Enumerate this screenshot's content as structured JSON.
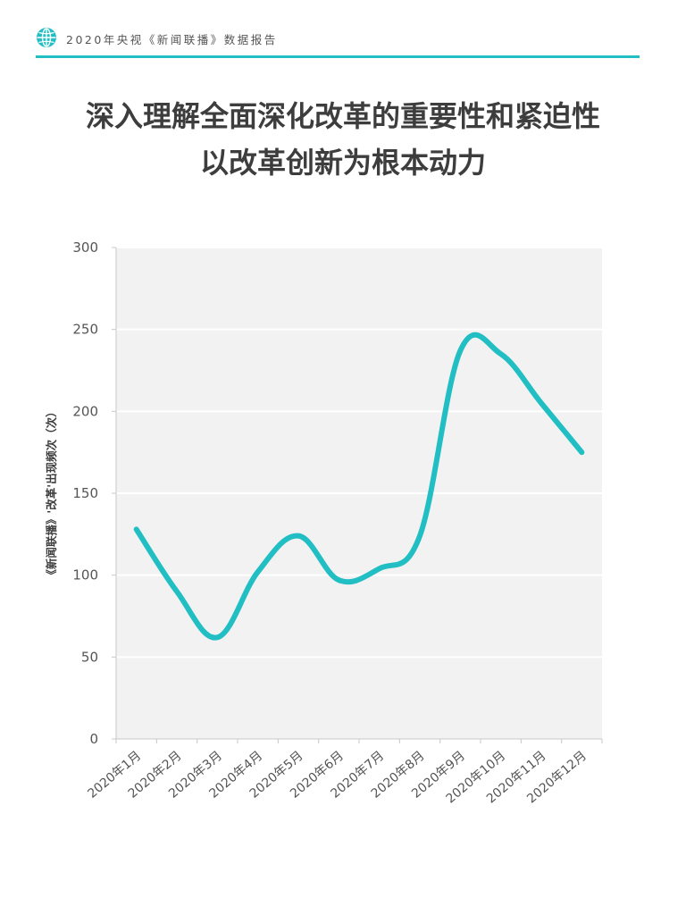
{
  "header": {
    "text": "2020年央视《新闻联播》数据报告"
  },
  "title": {
    "line1": "深入理解全面深化改革的重要性和紧迫性",
    "line2": "以改革创新为根本动力"
  },
  "colors": {
    "accent": "#21bec3",
    "plot_bg": "#f2f2f2",
    "text": "#3d3d3d"
  },
  "icons": {
    "header": "globe-icon"
  },
  "chart_data": {
    "type": "line",
    "categories": [
      "2020年1月",
      "2020年2月",
      "2020年3月",
      "2020年4月",
      "2020年5月",
      "2020年6月",
      "2020年7月",
      "2020年8月",
      "2020年9月",
      "2020年10月",
      "2020年11月",
      "2020年12月"
    ],
    "series": [
      {
        "values": [
          128,
          90,
          62,
          102,
          124,
          97,
          104,
          124,
          237,
          235,
          205,
          175
        ]
      }
    ],
    "title": "",
    "xlabel": "",
    "ylabel": "《新闻联播》'改革'出现频次（次）",
    "ylim": [
      0,
      300
    ],
    "yticks": [
      0,
      50,
      100,
      150,
      200,
      250,
      300
    ],
    "grid": true,
    "smooth": true,
    "legend": false
  }
}
